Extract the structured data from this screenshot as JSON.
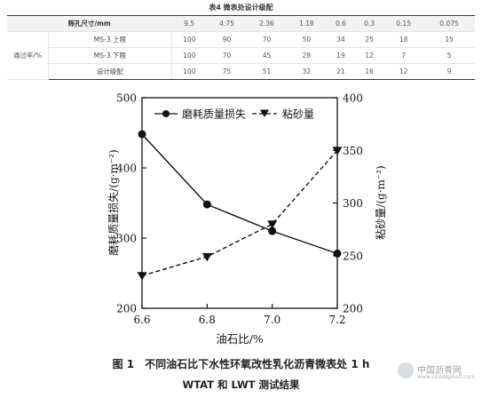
{
  "table": {
    "caption": "表4 微表处设计级配",
    "header": {
      "label": "筛孔尺寸/mm",
      "sizes": [
        "9.5",
        "4.75",
        "2.36",
        "1.18",
        "0.6",
        "0.3",
        "0.15",
        "0.075"
      ]
    },
    "group_label": "通过率/%",
    "rows": [
      {
        "label": "MS-3 上限",
        "values": [
          "100",
          "90",
          "70",
          "50",
          "34",
          "25",
          "18",
          "15"
        ]
      },
      {
        "label": "MS-3 下限",
        "values": [
          "100",
          "70",
          "45",
          "28",
          "19",
          "12",
          "7",
          "5"
        ]
      },
      {
        "label": "设计级配",
        "values": [
          "100",
          "75",
          "51",
          "32",
          "21",
          "16",
          "12",
          "9"
        ]
      }
    ]
  },
  "chart_data": {
    "type": "line",
    "x": [
      6.6,
      6.8,
      7.0,
      7.2
    ],
    "xlabel": "油石比/%",
    "xlim": [
      6.6,
      7.2
    ],
    "xticks": [
      "6.6",
      "6.8",
      "7.0",
      "7.2"
    ],
    "ylabel_left": "磨耗质量损失/(g·m⁻²)",
    "ylim_left": [
      200,
      500
    ],
    "yticks_left": [
      "200",
      "300",
      "400",
      "500"
    ],
    "ylabel_right": "粘砂量/(g·m⁻²)",
    "ylim_right": [
      200,
      400
    ],
    "yticks_right": [
      "200",
      "250",
      "300",
      "350",
      "400"
    ],
    "series": [
      {
        "name": "磨耗质量损失",
        "axis": "left",
        "style": "solid",
        "marker": "circle",
        "values": [
          448,
          348,
          310,
          278
        ]
      },
      {
        "name": "粘砂量",
        "axis": "right",
        "style": "dashed",
        "marker": "triangle-down",
        "values": [
          231,
          249,
          280,
          350
        ]
      }
    ],
    "legend": "top",
    "grid": false,
    "colors": {
      "line": "#111111"
    }
  },
  "figure": {
    "caption_line1": "图 1　不同油石比下水性环氧改性乳化沥青微表处 1 h",
    "caption_line2": "WTAT 和 LWT 测试结果"
  },
  "watermark": {
    "name": "中国沥青网",
    "url": "www.sinoasphalt.com"
  }
}
